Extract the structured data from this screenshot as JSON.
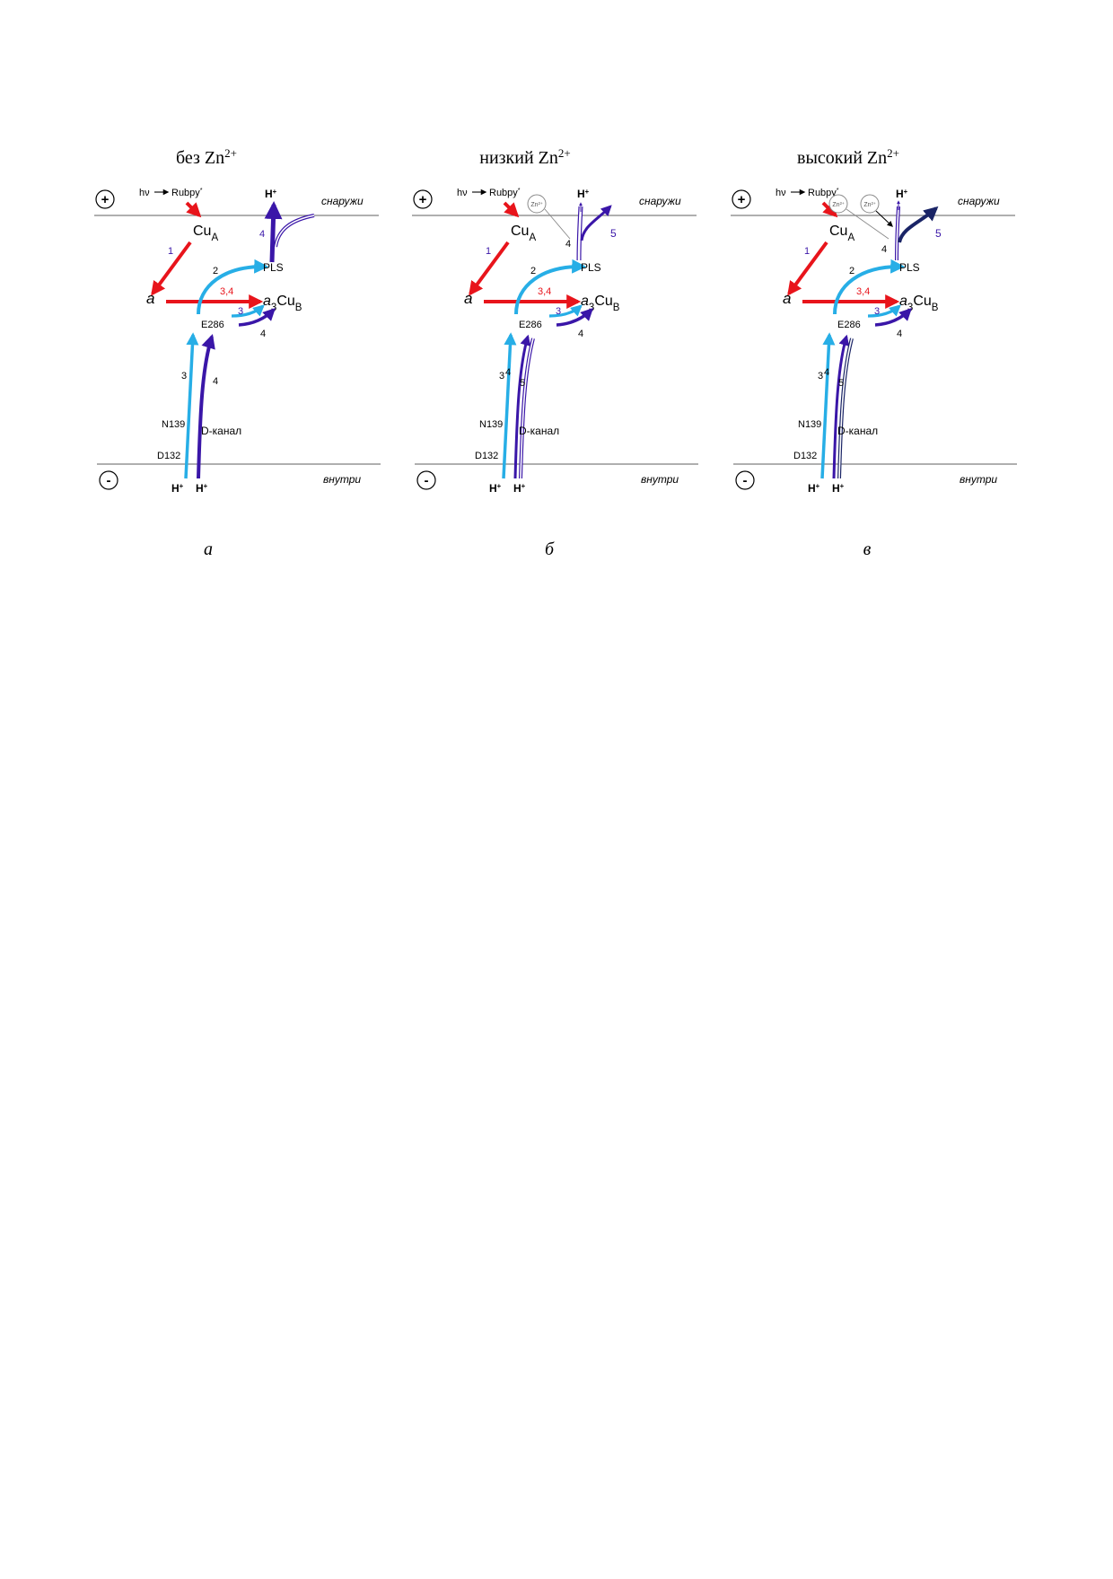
{
  "colors": {
    "red": "#e8141b",
    "cyan": "#27aee6",
    "purple": "#3a16a8",
    "navy": "#1a2466",
    "membrane": "#7f7f7f",
    "text": "#000000"
  },
  "labels": {
    "plus": "+",
    "minus": "-",
    "hv": "hν",
    "rubpy": "Rubpy*",
    "h_plus": "H+",
    "outside": "снаружи",
    "inside": "внутри",
    "cu_a": "CuA",
    "a": "a",
    "a3cub": "a3CuB",
    "pls": "PLS",
    "e286": "E286",
    "n139": "N139",
    "d132": "D132",
    "d_channel": "D-канал",
    "zn_circle": "Zn2+",
    "step_1": "1",
    "step_2": "2",
    "step_3": "3",
    "step_34": "3,4",
    "step_4": "4",
    "step_5": "5"
  },
  "panels": [
    {
      "title": "без Zn2+",
      "letter": "а",
      "zn_circles": 0
    },
    {
      "title": "низкий Zn2+",
      "letter": "б",
      "zn_circles": 1
    },
    {
      "title": "высокий Zn2+",
      "letter": "в",
      "zn_circles": 2
    }
  ]
}
